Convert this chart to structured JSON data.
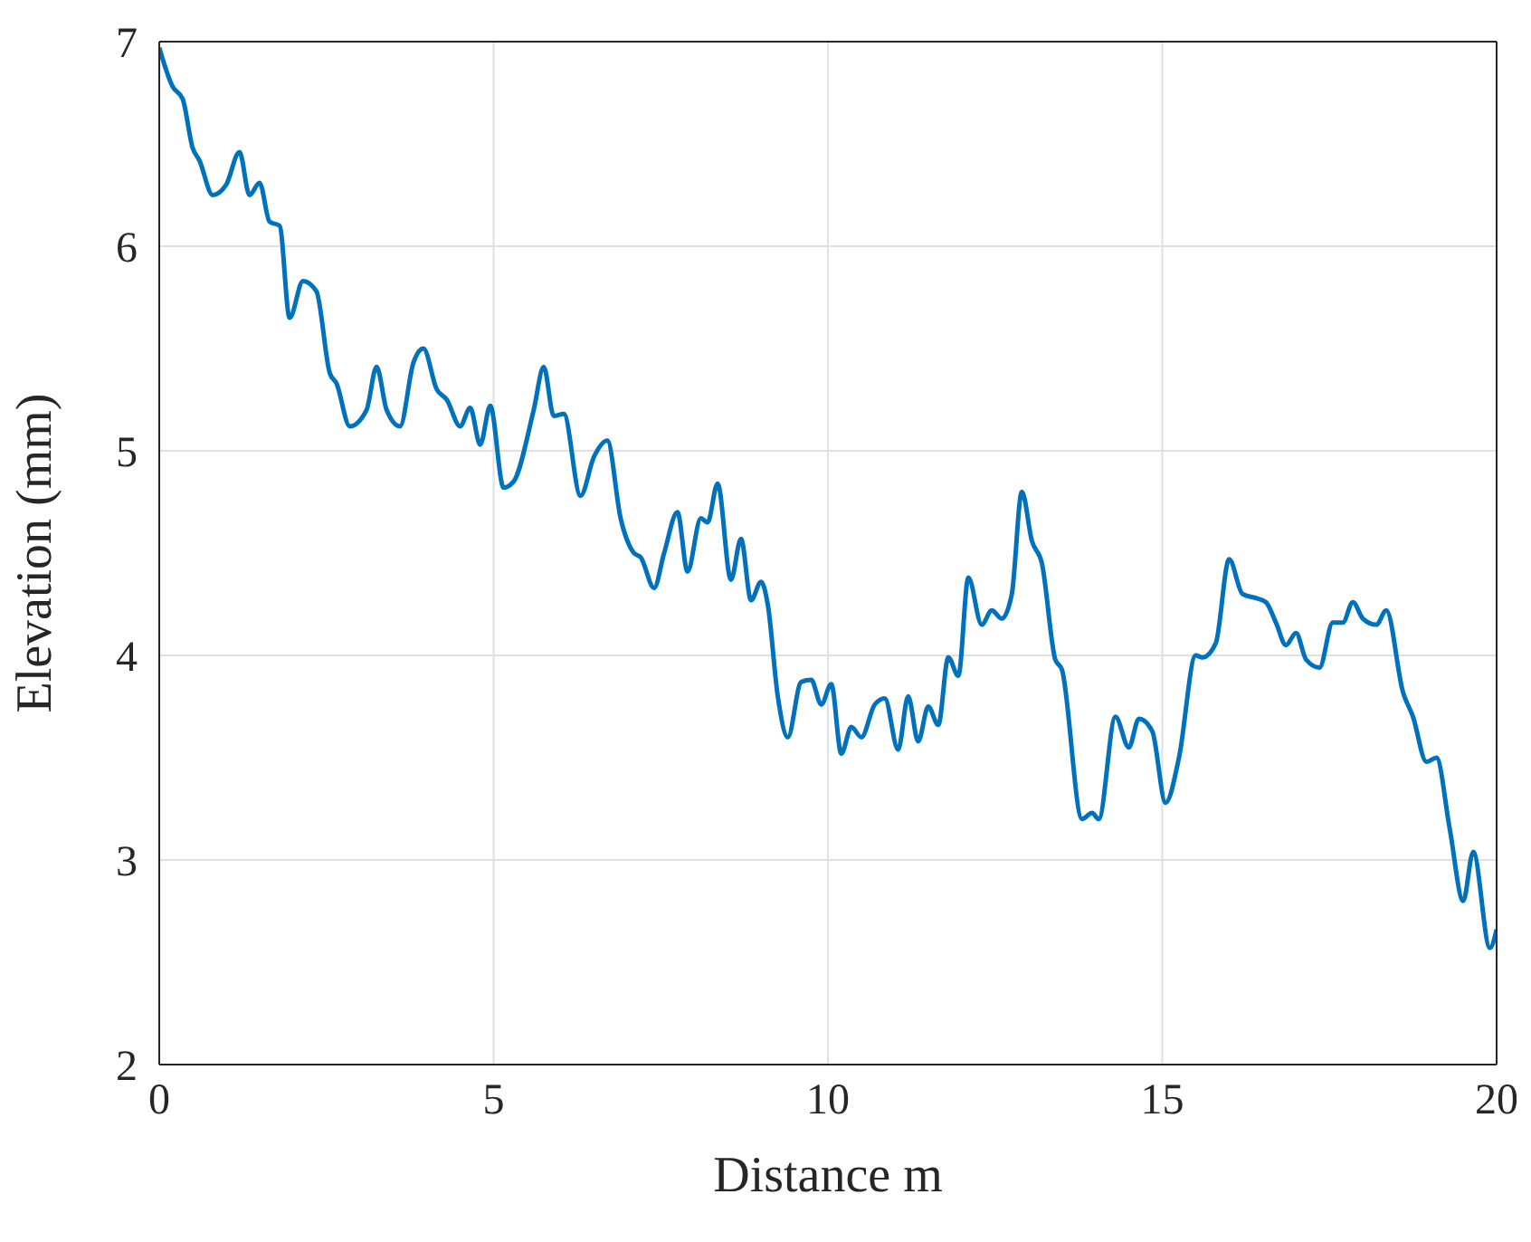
{
  "chart_data": {
    "type": "line",
    "xlabel": "Distance m",
    "ylabel": "Elevation (mm)",
    "xlim": [
      0,
      20
    ],
    "ylim": [
      2,
      7
    ],
    "xticks": [
      0,
      5,
      10,
      15,
      20
    ],
    "yticks": [
      2,
      3,
      4,
      5,
      6,
      7
    ],
    "grid": true,
    "marker": "none",
    "line_style": "solid",
    "series": [
      {
        "color": "#0072bd",
        "x": [
          0,
          0.2,
          0.35,
          0.5,
          0.6,
          0.8,
          1.0,
          1.2,
          1.35,
          1.5,
          1.65,
          1.8,
          1.95,
          2.15,
          2.35,
          2.55,
          2.65,
          2.85,
          3.1,
          3.25,
          3.4,
          3.6,
          3.8,
          3.95,
          4.15,
          4.3,
          4.5,
          4.65,
          4.8,
          4.95,
          5.15,
          5.3,
          5.6,
          5.75,
          5.9,
          6.05,
          6.3,
          6.5,
          6.7,
          6.9,
          7.1,
          7.2,
          7.4,
          7.55,
          7.75,
          7.9,
          8.1,
          8.2,
          8.35,
          8.55,
          8.7,
          8.85,
          9.0,
          9.1,
          9.25,
          9.4,
          9.6,
          9.75,
          9.9,
          10.05,
          10.2,
          10.35,
          10.5,
          10.7,
          10.85,
          11.05,
          11.2,
          11.35,
          11.5,
          11.65,
          11.8,
          11.95,
          12.1,
          12.3,
          12.45,
          12.6,
          12.75,
          12.9,
          13.05,
          13.2,
          13.4,
          13.5,
          13.8,
          13.95,
          14.05,
          14.3,
          14.5,
          14.65,
          14.85,
          15.05,
          15.25,
          15.5,
          15.6,
          15.8,
          16.0,
          16.2,
          16.4,
          16.55,
          16.7,
          16.85,
          17.0,
          17.15,
          17.35,
          17.55,
          17.7,
          17.85,
          18.0,
          18.2,
          18.35,
          18.6,
          18.75,
          18.95,
          19.1,
          19.3,
          19.5,
          19.65,
          19.9,
          20.0
        ],
        "values": [
          6.97,
          6.78,
          6.72,
          6.48,
          6.42,
          6.25,
          6.3,
          6.46,
          6.25,
          6.31,
          6.12,
          6.1,
          5.65,
          5.83,
          5.78,
          5.38,
          5.33,
          5.12,
          5.2,
          5.41,
          5.2,
          5.12,
          5.43,
          5.5,
          5.3,
          5.25,
          5.12,
          5.21,
          5.03,
          5.22,
          4.82,
          4.85,
          5.2,
          5.41,
          5.17,
          5.18,
          4.78,
          4.97,
          5.05,
          4.67,
          4.5,
          4.48,
          4.33,
          4.5,
          4.7,
          4.41,
          4.67,
          4.65,
          4.84,
          4.37,
          4.57,
          4.27,
          4.36,
          4.25,
          3.8,
          3.6,
          3.87,
          3.88,
          3.76,
          3.86,
          3.52,
          3.65,
          3.6,
          3.76,
          3.79,
          3.54,
          3.8,
          3.58,
          3.75,
          3.66,
          3.99,
          3.9,
          4.38,
          4.15,
          4.22,
          4.18,
          4.3,
          4.8,
          4.56,
          4.45,
          3.98,
          3.93,
          3.2,
          3.23,
          3.2,
          3.7,
          3.55,
          3.69,
          3.63,
          3.28,
          3.5,
          4.0,
          3.99,
          4.06,
          4.47,
          4.3,
          4.28,
          4.26,
          4.16,
          4.05,
          4.11,
          3.98,
          3.94,
          4.16,
          4.16,
          4.26,
          4.18,
          4.15,
          4.22,
          3.82,
          3.7,
          3.48,
          3.5,
          3.15,
          2.8,
          3.04,
          2.57,
          2.66
        ]
      }
    ]
  }
}
